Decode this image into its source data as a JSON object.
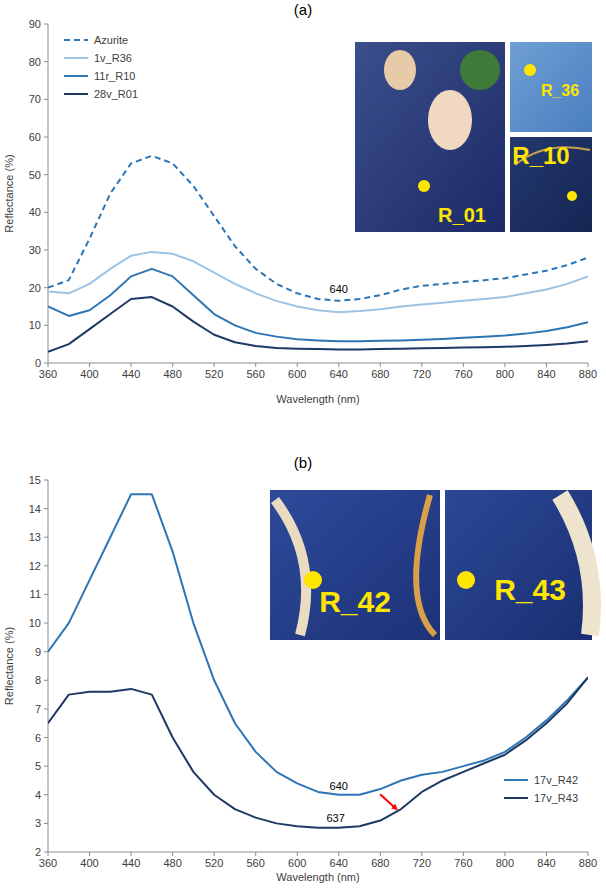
{
  "chart_data": [
    {
      "type": "line",
      "title": "(a)",
      "xlabel": "Wavelength (nm)",
      "ylabel": "Reflectance (%)",
      "x": [
        360,
        380,
        400,
        420,
        440,
        460,
        480,
        500,
        520,
        540,
        560,
        580,
        600,
        620,
        640,
        660,
        680,
        700,
        720,
        740,
        760,
        780,
        800,
        820,
        840,
        860,
        880
      ],
      "xlim": [
        360,
        880
      ],
      "xticks": [
        360,
        400,
        440,
        480,
        520,
        560,
        600,
        640,
        680,
        720,
        760,
        800,
        840,
        880
      ],
      "ylim": [
        0,
        90
      ],
      "yticks": [
        0,
        10,
        20,
        30,
        40,
        50,
        60,
        70,
        80,
        90
      ],
      "legend": "upper left",
      "grid": false,
      "series": [
        {
          "name": "Azurite",
          "color": "#2e75b6",
          "line_style": "dashed",
          "values": [
            20,
            22,
            33,
            45,
            53,
            55,
            53,
            47,
            39,
            31,
            25,
            21,
            18.5,
            17,
            16.5,
            17,
            18,
            19.5,
            20.5,
            21,
            21.5,
            22,
            22.5,
            23.5,
            24.5,
            26,
            28
          ]
        },
        {
          "name": "1v_R36",
          "color": "#9dc3e6",
          "line_style": "solid",
          "values": [
            19,
            18.5,
            21,
            25,
            28.5,
            29.5,
            29,
            27,
            24,
            21,
            18.5,
            16.5,
            15,
            14,
            13.5,
            13.8,
            14.3,
            15,
            15.5,
            16,
            16.5,
            17,
            17.5,
            18.5,
            19.5,
            21,
            23
          ]
        },
        {
          "name": "11r_R10",
          "color": "#2e75b6",
          "line_style": "solid",
          "values": [
            15,
            12.5,
            14,
            18,
            23,
            25,
            23,
            18,
            13,
            10,
            8,
            7,
            6.3,
            6,
            5.8,
            5.8,
            5.9,
            6,
            6.2,
            6.4,
            6.7,
            7,
            7.3,
            7.8,
            8.5,
            9.5,
            10.8
          ]
        },
        {
          "name": "28v_R01",
          "color": "#1f3864",
          "line_style": "solid",
          "values": [
            3,
            5,
            9,
            13,
            17,
            17.5,
            15,
            11,
            7.5,
            5.5,
            4.5,
            4,
            3.8,
            3.7,
            3.6,
            3.6,
            3.7,
            3.8,
            3.9,
            4,
            4.1,
            4.2,
            4.3,
            4.5,
            4.8,
            5.2,
            5.8
          ]
        }
      ],
      "annotations": [
        {
          "text": "640",
          "x": 640,
          "y": 18.5
        }
      ],
      "inset_labels": [
        "R_01",
        "R_36",
        "R_10"
      ]
    },
    {
      "type": "line",
      "title": "(b)",
      "xlabel": "Wavelength (nm)",
      "ylabel": "Reflectance (%)",
      "x": [
        360,
        380,
        400,
        420,
        440,
        460,
        480,
        500,
        520,
        540,
        560,
        580,
        600,
        620,
        640,
        660,
        680,
        700,
        720,
        740,
        760,
        780,
        800,
        820,
        840,
        860,
        880
      ],
      "xlim": [
        360,
        880
      ],
      "xticks": [
        360,
        400,
        440,
        480,
        520,
        560,
        600,
        640,
        680,
        720,
        760,
        800,
        840,
        880
      ],
      "ylim": [
        2,
        15
      ],
      "yticks": [
        2,
        3,
        4,
        5,
        6,
        7,
        8,
        9,
        10,
        11,
        12,
        13,
        14,
        15
      ],
      "legend": "lower right",
      "grid": false,
      "series": [
        {
          "name": "17v_R42",
          "color": "#2e75b6",
          "line_style": "solid",
          "values": [
            9,
            10,
            11.5,
            13,
            14.5,
            14.5,
            12.5,
            10,
            8,
            6.5,
            5.5,
            4.8,
            4.4,
            4.1,
            4,
            4,
            4.2,
            4.5,
            4.7,
            4.8,
            5,
            5.2,
            5.5,
            6,
            6.6,
            7.3,
            8.1
          ]
        },
        {
          "name": "17v_R43",
          "color": "#1f3864",
          "line_style": "solid",
          "values": [
            6.5,
            7.5,
            7.6,
            7.6,
            7.7,
            7.5,
            6,
            4.8,
            4,
            3.5,
            3.2,
            3,
            2.9,
            2.85,
            2.85,
            2.9,
            3.1,
            3.5,
            4.1,
            4.5,
            4.8,
            5.1,
            5.4,
            5.9,
            6.5,
            7.2,
            8.1
          ]
        }
      ],
      "annotations": [
        {
          "text": "640",
          "x": 640,
          "y": 4.15
        },
        {
          "text": "637",
          "x": 637,
          "y": 3.05
        }
      ],
      "inset_labels": [
        "R_42",
        "R_43"
      ]
    }
  ]
}
